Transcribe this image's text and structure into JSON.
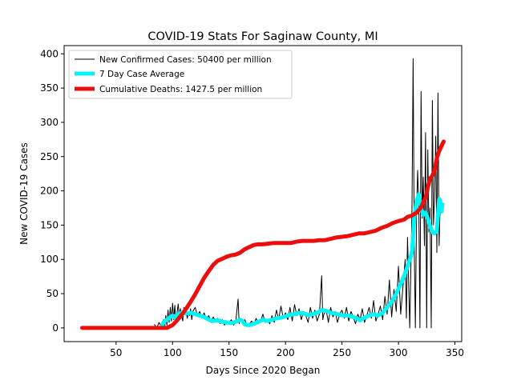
{
  "chart_data": {
    "type": "line",
    "title": "COVID-19 Stats For Saginaw County, MI",
    "xlabel": "Days Since 2020 Began",
    "ylabel": "New COVID-19 Cases",
    "xlim": [
      4,
      356
    ],
    "ylim": [
      -20,
      412
    ],
    "xticks": [
      50,
      100,
      150,
      200,
      250,
      300,
      350
    ],
    "yticks": [
      0,
      50,
      100,
      150,
      200,
      250,
      300,
      350,
      400
    ],
    "legend_position": "top-left",
    "grid": false,
    "series": [
      {
        "name": "New Confirmed Cases: 50400 per million",
        "color": "#000000",
        "line_width": 1,
        "points": [
          [
            84,
            5
          ],
          [
            86,
            0
          ],
          [
            88,
            8
          ],
          [
            90,
            2
          ],
          [
            92,
            12
          ],
          [
            93,
            0
          ],
          [
            94,
            18
          ],
          [
            95,
            4
          ],
          [
            96,
            26
          ],
          [
            97,
            8
          ],
          [
            98,
            30
          ],
          [
            99,
            10
          ],
          [
            100,
            36
          ],
          [
            101,
            12
          ],
          [
            102,
            33
          ],
          [
            103,
            8
          ],
          [
            104,
            22
          ],
          [
            105,
            35
          ],
          [
            106,
            15
          ],
          [
            107,
            28
          ],
          [
            108,
            18
          ],
          [
            109,
            10
          ],
          [
            110,
            30
          ],
          [
            111,
            20
          ],
          [
            112,
            25
          ],
          [
            113,
            14
          ],
          [
            114,
            22
          ],
          [
            115,
            18
          ],
          [
            116,
            28
          ],
          [
            117,
            12
          ],
          [
            118,
            24
          ],
          [
            120,
            30
          ],
          [
            122,
            18
          ],
          [
            124,
            24
          ],
          [
            126,
            14
          ],
          [
            128,
            22
          ],
          [
            130,
            12
          ],
          [
            132,
            18
          ],
          [
            134,
            8
          ],
          [
            136,
            16
          ],
          [
            138,
            10
          ],
          [
            140,
            14
          ],
          [
            142,
            6
          ],
          [
            144,
            12
          ],
          [
            146,
            4
          ],
          [
            148,
            10
          ],
          [
            150,
            6
          ],
          [
            152,
            12
          ],
          [
            154,
            4
          ],
          [
            156,
            10
          ],
          [
            158,
            42
          ],
          [
            159,
            6
          ],
          [
            160,
            14
          ],
          [
            162,
            6
          ],
          [
            164,
            12
          ],
          [
            166,
            2
          ],
          [
            168,
            6
          ],
          [
            170,
            10
          ],
          [
            172,
            4
          ],
          [
            174,
            14
          ],
          [
            176,
            6
          ],
          [
            178,
            10
          ],
          [
            180,
            20
          ],
          [
            182,
            8
          ],
          [
            184,
            12
          ],
          [
            186,
            6
          ],
          [
            188,
            18
          ],
          [
            190,
            8
          ],
          [
            192,
            26
          ],
          [
            194,
            12
          ],
          [
            196,
            32
          ],
          [
            198,
            14
          ],
          [
            200,
            22
          ],
          [
            202,
            12
          ],
          [
            204,
            30
          ],
          [
            206,
            10
          ],
          [
            208,
            34
          ],
          [
            210,
            18
          ],
          [
            212,
            28
          ],
          [
            214,
            12
          ],
          [
            216,
            24
          ],
          [
            218,
            18
          ],
          [
            220,
            8
          ],
          [
            222,
            30
          ],
          [
            224,
            14
          ],
          [
            226,
            26
          ],
          [
            228,
            10
          ],
          [
            230,
            20
          ],
          [
            232,
            76
          ],
          [
            233,
            12
          ],
          [
            234,
            20
          ],
          [
            236,
            26
          ],
          [
            238,
            8
          ],
          [
            240,
            30
          ],
          [
            242,
            16
          ],
          [
            244,
            24
          ],
          [
            246,
            8
          ],
          [
            248,
            20
          ],
          [
            250,
            26
          ],
          [
            252,
            14
          ],
          [
            254,
            30
          ],
          [
            256,
            10
          ],
          [
            258,
            24
          ],
          [
            260,
            16
          ],
          [
            262,
            6
          ],
          [
            264,
            20
          ],
          [
            266,
            12
          ],
          [
            268,
            28
          ],
          [
            270,
            8
          ],
          [
            272,
            18
          ],
          [
            274,
            30
          ],
          [
            276,
            14
          ],
          [
            278,
            40
          ],
          [
            280,
            10
          ],
          [
            282,
            20
          ],
          [
            284,
            32
          ],
          [
            286,
            12
          ],
          [
            288,
            46
          ],
          [
            290,
            20
          ],
          [
            292,
            70
          ],
          [
            294,
            16
          ],
          [
            296,
            56
          ],
          [
            298,
            24
          ],
          [
            300,
            90
          ],
          [
            302,
            20
          ],
          [
            304,
            60
          ],
          [
            306,
            100
          ],
          [
            307,
            14
          ],
          [
            308,
            132
          ],
          [
            310,
            0
          ],
          [
            312,
            176
          ],
          [
            313,
            393
          ],
          [
            314,
            120
          ],
          [
            315,
            0
          ],
          [
            316,
            160
          ],
          [
            317,
            230
          ],
          [
            318,
            180
          ],
          [
            319,
            0
          ],
          [
            320,
            345
          ],
          [
            321,
            160
          ],
          [
            322,
            220
          ],
          [
            323,
            120
          ],
          [
            324,
            285
          ],
          [
            325,
            0
          ],
          [
            326,
            260
          ],
          [
            327,
            140
          ],
          [
            328,
            175
          ],
          [
            329,
            0
          ],
          [
            330,
            332
          ],
          [
            331,
            150
          ],
          [
            332,
            190
          ],
          [
            333,
            280
          ],
          [
            334,
            110
          ],
          [
            335,
            343
          ],
          [
            336,
            120
          ],
          [
            337,
            180
          ]
        ]
      },
      {
        "name": "7 Day Case Average",
        "color": "#00f5f5",
        "line_width": 5,
        "points": [
          [
            90,
            0
          ],
          [
            92,
            8
          ],
          [
            95,
            12
          ],
          [
            98,
            16
          ],
          [
            100,
            18
          ],
          [
            102,
            15
          ],
          [
            105,
            20
          ],
          [
            108,
            22
          ],
          [
            112,
            21
          ],
          [
            116,
            22
          ],
          [
            120,
            20
          ],
          [
            124,
            18
          ],
          [
            128,
            16
          ],
          [
            132,
            12
          ],
          [
            136,
            10
          ],
          [
            140,
            11
          ],
          [
            144,
            9
          ],
          [
            148,
            8
          ],
          [
            152,
            7
          ],
          [
            156,
            9
          ],
          [
            160,
            12
          ],
          [
            162,
            10
          ],
          [
            164,
            5
          ],
          [
            168,
            4
          ],
          [
            172,
            6
          ],
          [
            176,
            9
          ],
          [
            180,
            12
          ],
          [
            184,
            10
          ],
          [
            188,
            12
          ],
          [
            192,
            14
          ],
          [
            196,
            15
          ],
          [
            200,
            17
          ],
          [
            204,
            19
          ],
          [
            208,
            20
          ],
          [
            212,
            22
          ],
          [
            216,
            21
          ],
          [
            220,
            19
          ],
          [
            224,
            20
          ],
          [
            228,
            22
          ],
          [
            232,
            26
          ],
          [
            236,
            25
          ],
          [
            240,
            22
          ],
          [
            244,
            21
          ],
          [
            248,
            19
          ],
          [
            252,
            18
          ],
          [
            256,
            18
          ],
          [
            260,
            16
          ],
          [
            264,
            13
          ],
          [
            266,
            11
          ],
          [
            270,
            15
          ],
          [
            274,
            18
          ],
          [
            278,
            20
          ],
          [
            282,
            18
          ],
          [
            286,
            22
          ],
          [
            290,
            30
          ],
          [
            294,
            38
          ],
          [
            298,
            50
          ],
          [
            302,
            64
          ],
          [
            306,
            80
          ],
          [
            308,
            90
          ],
          [
            312,
            110
          ],
          [
            314,
            160
          ],
          [
            316,
            185
          ],
          [
            318,
            195
          ],
          [
            320,
            175
          ],
          [
            322,
            165
          ],
          [
            324,
            168
          ],
          [
            326,
            160
          ],
          [
            328,
            148
          ],
          [
            330,
            140
          ],
          [
            332,
            138
          ],
          [
            334,
            142
          ],
          [
            336,
            188
          ],
          [
            337,
            186
          ],
          [
            338,
            170
          ],
          [
            339,
            180
          ]
        ]
      },
      {
        "name": "Cumulative Deaths: 1427.5 per million",
        "color": "#ee0d0d",
        "line_width": 5,
        "points": [
          [
            20,
            0
          ],
          [
            95,
            0
          ],
          [
            100,
            4
          ],
          [
            104,
            11
          ],
          [
            108,
            19
          ],
          [
            112,
            28
          ],
          [
            116,
            38
          ],
          [
            120,
            49
          ],
          [
            124,
            61
          ],
          [
            128,
            73
          ],
          [
            132,
            83
          ],
          [
            136,
            92
          ],
          [
            140,
            98
          ],
          [
            144,
            101
          ],
          [
            148,
            104
          ],
          [
            152,
            106
          ],
          [
            156,
            107
          ],
          [
            160,
            110
          ],
          [
            164,
            115
          ],
          [
            168,
            118
          ],
          [
            172,
            121
          ],
          [
            176,
            122
          ],
          [
            180,
            122
          ],
          [
            185,
            123
          ],
          [
            190,
            124
          ],
          [
            200,
            124
          ],
          [
            205,
            124
          ],
          [
            210,
            126
          ],
          [
            215,
            127
          ],
          [
            220,
            127
          ],
          [
            225,
            127
          ],
          [
            230,
            128
          ],
          [
            235,
            128
          ],
          [
            240,
            130
          ],
          [
            245,
            132
          ],
          [
            250,
            133
          ],
          [
            255,
            134
          ],
          [
            260,
            136
          ],
          [
            265,
            138
          ],
          [
            270,
            138
          ],
          [
            275,
            140
          ],
          [
            280,
            142
          ],
          [
            285,
            146
          ],
          [
            290,
            149
          ],
          [
            295,
            153
          ],
          [
            300,
            156
          ],
          [
            305,
            158
          ],
          [
            308,
            162
          ],
          [
            312,
            164
          ],
          [
            316,
            168
          ],
          [
            320,
            176
          ],
          [
            324,
            190
          ],
          [
            326,
            205
          ],
          [
            328,
            218
          ],
          [
            330,
            222
          ],
          [
            332,
            230
          ],
          [
            334,
            248
          ],
          [
            336,
            258
          ],
          [
            338,
            265
          ],
          [
            340,
            272
          ]
        ]
      }
    ]
  }
}
